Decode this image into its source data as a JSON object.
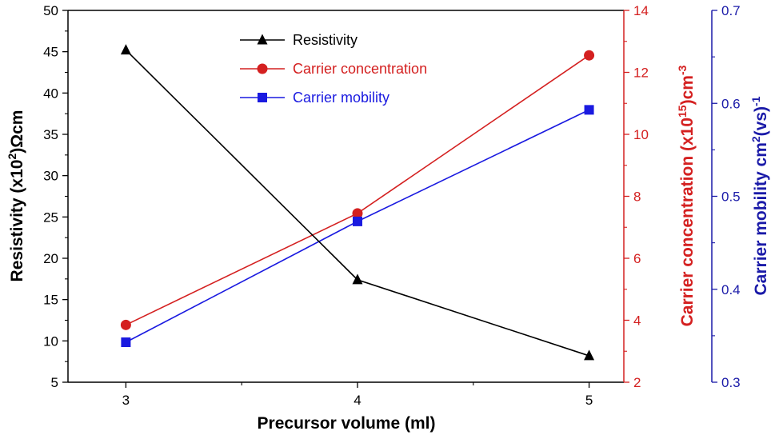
{
  "chart_data": {
    "type": "line",
    "x": [
      3,
      4,
      5
    ],
    "xticks": [
      "3",
      "4",
      "5"
    ],
    "xlabel": "Precursor volume (ml)",
    "xlim": [
      2.75,
      5.15
    ],
    "axes": {
      "left": {
        "label_main": "Resistivity (x10",
        "label_sup": "2",
        "label_tail": ")Ωcm",
        "ylim": [
          5,
          50
        ],
        "ticks": [
          "5",
          "10",
          "15",
          "20",
          "25",
          "30",
          "35",
          "40",
          "45",
          "50"
        ],
        "color": "#000000"
      },
      "right1": {
        "label_main": "Carrier concentration (x10",
        "label_sup": "15",
        "label_tail": ")cm",
        "label_sup2": "-3",
        "ylim": [
          2,
          14
        ],
        "ticks": [
          "2",
          "4",
          "6",
          "8",
          "10",
          "12",
          "14"
        ],
        "color": "#d42020"
      },
      "right2": {
        "label_main": "Carrier mobility cm",
        "label_sup": "2",
        "label_tail": "(vs)",
        "label_sup2": "-1",
        "ylim": [
          0.3,
          0.7
        ],
        "ticks": [
          "0.3",
          "0.4",
          "0.5",
          "0.6",
          "0.7"
        ],
        "color": "#1a1aa8"
      }
    },
    "series": [
      {
        "name": "Resistivity",
        "axis": "left",
        "values": [
          45.2,
          17.4,
          8.2
        ],
        "color": "#000000",
        "marker": "triangle"
      },
      {
        "name": "Carrier concentration",
        "axis": "right1",
        "values": [
          3.85,
          7.45,
          12.55
        ],
        "color": "#d42020",
        "marker": "circle"
      },
      {
        "name": "Carrier mobility",
        "axis": "right2",
        "values": [
          0.343,
          0.473,
          0.593
        ],
        "color": "#1a1ae0",
        "marker": "square"
      }
    ],
    "legend_position": "top-center"
  }
}
